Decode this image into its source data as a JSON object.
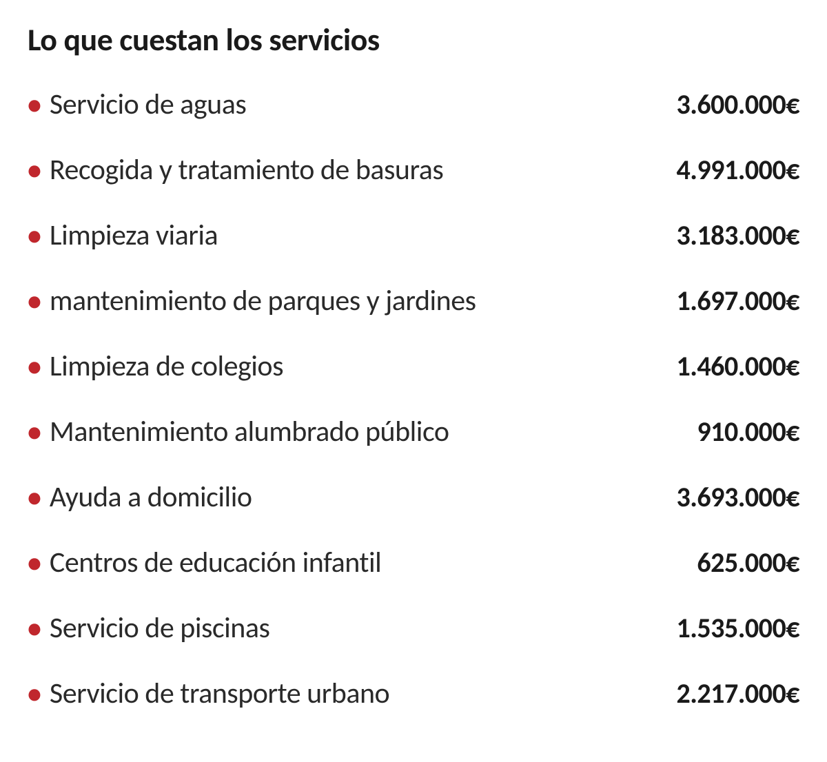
{
  "title": "Lo que cuestan los servicios",
  "bullet_color": "#c0272d",
  "text_color": "#2a2a2a",
  "title_color": "#1a1a1a",
  "cost_color": "#1a1a1a",
  "background_color": "#ffffff",
  "title_fontsize": 46,
  "label_fontsize": 42,
  "cost_fontsize": 40,
  "cost_fontweight": 700,
  "services": [
    {
      "label": "Servicio de aguas",
      "cost": "3.600.000€"
    },
    {
      "label": "Recogida y tratamiento de basuras",
      "cost": "4.991.000€"
    },
    {
      "label": "Limpieza viaria",
      "cost": "3.183.000€"
    },
    {
      "label": "mantenimiento de parques y jardines",
      "cost": "1.697.000€"
    },
    {
      "label": "Limpieza de colegios",
      "cost": "1.460.000€"
    },
    {
      "label": "Mantenimiento alumbrado público",
      "cost": "910.000€"
    },
    {
      "label": "Ayuda a domicilio",
      "cost": "3.693.000€"
    },
    {
      "label": "Centros de educación infantil",
      "cost": "625.000€"
    },
    {
      "label": "Servicio de piscinas",
      "cost": "1.535.000€"
    },
    {
      "label": "Servicio de transporte urbano",
      "cost": "2.217.000€"
    }
  ]
}
